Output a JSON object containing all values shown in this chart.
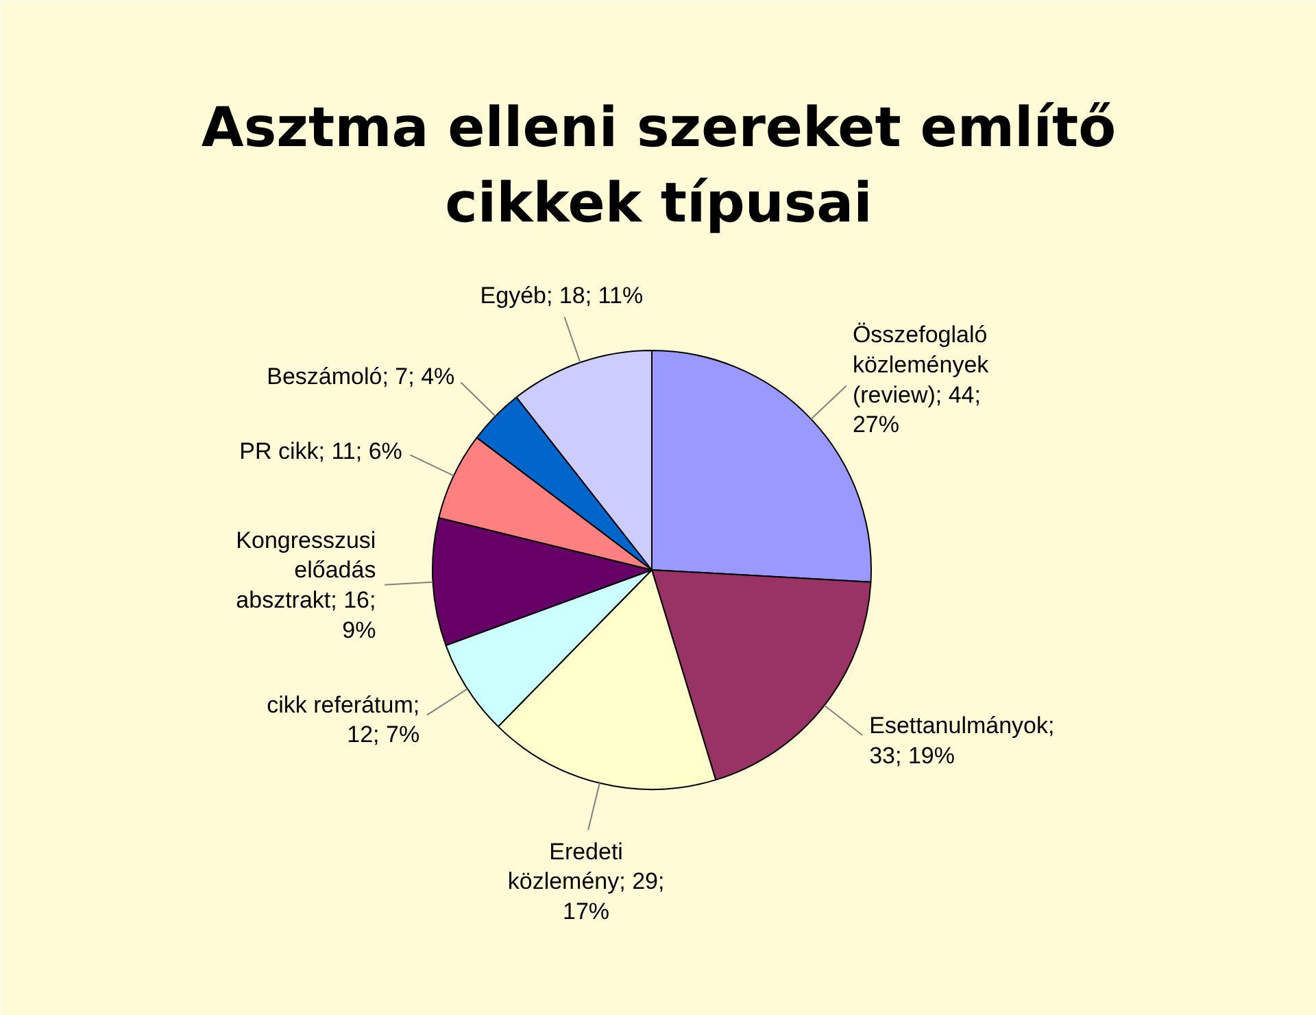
{
  "chart_data": {
    "type": "pie",
    "title": "Asztma elleni szereket említő cikkek típusai",
    "categories": [
      "Összefoglaló közlemények (review)",
      "Esettanulmányok",
      "Eredeti közlemény",
      "cikk referátum",
      "Kongresszusi előadás absztrakt",
      "PR cikk",
      "Beszámoló",
      "Egyéb"
    ],
    "values": [
      44,
      33,
      29,
      12,
      16,
      11,
      7,
      18
    ],
    "value_labels": [
      "; 44; 27%",
      "; 33; 19%",
      "; 29; 17%",
      "; 12; 7%",
      "; 16; 9%",
      "; 11; 6%",
      "; 7; 4%",
      "; 18; 11%"
    ],
    "colors": [
      "#9999ff",
      "#993366",
      "#ffffcc",
      "#ccffff",
      "#660066",
      "#ff8080",
      "#0066cc",
      "#ccccff"
    ]
  }
}
